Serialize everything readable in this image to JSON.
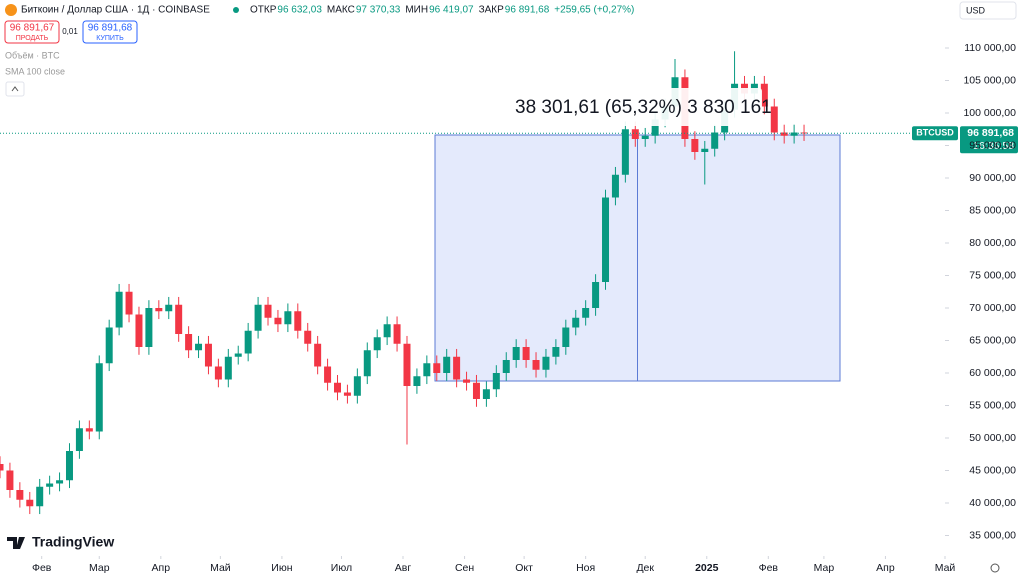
{
  "header": {
    "symbol": "Биткоин / Доллар США · 1Д · COINBASE",
    "stats": [
      {
        "label": "ОТКР",
        "value": "96 632,03"
      },
      {
        "label": "МАКС",
        "value": "97 370,33"
      },
      {
        "label": "МИН",
        "value": "96 419,07"
      },
      {
        "label": "ЗАКР",
        "value": "96 891,68"
      }
    ],
    "change": "+259,65 (+0,27%)",
    "currency": "USD",
    "sell": {
      "price": "96 891,67",
      "label": "ПРОДАТЬ"
    },
    "spread": "0,01",
    "buy": {
      "price": "96 891,68",
      "label": "КУПИТЬ"
    },
    "indicators": [
      "Объём · BTC",
      "SMA 100 close"
    ],
    "logo": "TradingView"
  },
  "chart_data": {
    "type": "candlestick",
    "name": "BTCUSD",
    "up_color": "#089981",
    "down_color": "#f23645",
    "last_price_label": "96 891,68",
    "countdown": "16:36:58",
    "measure_label": "38 301,61 (65,32%) 3 830 161",
    "xlim": [
      -21,
      455
    ],
    "ylim": [
      33077,
      117385
    ],
    "xticks": [
      {
        "value": 0,
        "label": "Фев"
      },
      {
        "value": 29,
        "label": "Мар"
      },
      {
        "value": 60,
        "label": "Апр"
      },
      {
        "value": 90,
        "label": "Май"
      },
      {
        "value": 121,
        "label": "Июн"
      },
      {
        "value": 151,
        "label": "Июл"
      },
      {
        "value": 182,
        "label": "Авг"
      },
      {
        "value": 213,
        "label": "Сен"
      },
      {
        "value": 243,
        "label": "Окт"
      },
      {
        "value": 274,
        "label": "Ноя"
      },
      {
        "value": 304,
        "label": "Дек"
      },
      {
        "value": 335,
        "label": "2025"
      },
      {
        "value": 366,
        "label": "Фев"
      },
      {
        "value": 394,
        "label": "Мар"
      },
      {
        "value": 425,
        "label": "Апр"
      },
      {
        "value": 455,
        "label": "Май"
      }
    ],
    "yticks": [
      {
        "value": 35000,
        "label": "35 000,00"
      },
      {
        "value": 40000,
        "label": "40 000,00"
      },
      {
        "value": 45000,
        "label": "45 000,00"
      },
      {
        "value": 50000,
        "label": "50 000,00"
      },
      {
        "value": 55000,
        "label": "55 000,00"
      },
      {
        "value": 60000,
        "label": "60 000,00"
      },
      {
        "value": 65000,
        "label": "65 000,00"
      },
      {
        "value": 70000,
        "label": "70 000,00"
      },
      {
        "value": 75000,
        "label": "75 000,00"
      },
      {
        "value": 80000,
        "label": "80 000,00"
      },
      {
        "value": 85000,
        "label": "85 000,00"
      },
      {
        "value": 90000,
        "label": "90 000,00"
      },
      {
        "value": 95000,
        "label": "95 000,00"
      },
      {
        "value": 100000,
        "label": "100 000,00"
      },
      {
        "value": 105000,
        "label": "105 000,00"
      },
      {
        "value": 110000,
        "label": "110 000,00"
      }
    ],
    "x": [
      -21,
      -16,
      -11,
      -6,
      -1,
      4,
      9,
      14,
      19,
      24,
      29,
      34,
      39,
      44,
      49,
      54,
      59,
      64,
      69,
      74,
      79,
      84,
      89,
      94,
      99,
      104,
      109,
      114,
      119,
      124,
      129,
      134,
      139,
      144,
      149,
      154,
      159,
      164,
      169,
      174,
      179,
      184,
      189,
      194,
      199,
      204,
      209,
      214,
      219,
      224,
      229,
      234,
      239,
      244,
      249,
      254,
      259,
      264,
      269,
      274,
      279,
      284,
      289,
      294,
      299,
      304,
      309,
      314,
      319,
      324,
      329,
      334,
      339,
      344,
      349,
      354,
      359,
      364,
      369,
      374,
      379,
      384
    ],
    "open": [
      46000,
      45000,
      42000,
      40500,
      39500,
      42500,
      43000,
      43500,
      48000,
      51500,
      51000,
      61500,
      67000,
      72500,
      69000,
      64000,
      70000,
      69500,
      70500,
      66000,
      63500,
      64500,
      61000,
      59000,
      62500,
      63000,
      66500,
      70500,
      68500,
      67500,
      69500,
      66500,
      64500,
      61000,
      58500,
      57000,
      56500,
      59500,
      63500,
      65500,
      67500,
      64500,
      58000,
      59500,
      61500,
      60000,
      62500,
      59000,
      58500,
      56000,
      57500,
      60000,
      62000,
      64000,
      62000,
      60500,
      62500,
      64000,
      67000,
      68500,
      70000,
      74000,
      87000,
      90500,
      97500,
      96000,
      96500,
      99000,
      101000,
      105500,
      96000,
      94000,
      94500,
      97000,
      100500,
      104500,
      103000,
      104500,
      101000,
      97000,
      96500,
      97000
    ],
    "high": [
      47200,
      46200,
      43200,
      41700,
      43700,
      44200,
      44700,
      49200,
      52700,
      52700,
      62700,
      68200,
      73700,
      73700,
      70200,
      71200,
      71200,
      71700,
      71700,
      67200,
      65700,
      65700,
      62200,
      63700,
      64200,
      67700,
      71700,
      71700,
      69700,
      70700,
      70700,
      67700,
      65700,
      62200,
      59700,
      58200,
      60700,
      64700,
      66700,
      68700,
      68700,
      65700,
      60700,
      62700,
      62700,
      63700,
      63700,
      60200,
      59700,
      58700,
      61200,
      63200,
      65200,
      65200,
      63200,
      63700,
      65200,
      68200,
      69700,
      71200,
      75200,
      88200,
      91700,
      98700,
      98700,
      97700,
      100200,
      102200,
      108300,
      106700,
      97200,
      95700,
      98200,
      101700,
      109500,
      105700,
      105700,
      105700,
      102200,
      98200,
      98200,
      98200
    ],
    "low": [
      43800,
      40800,
      39300,
      38300,
      38300,
      41300,
      41800,
      42300,
      46800,
      49800,
      49800,
      60300,
      65800,
      67800,
      62800,
      62800,
      68300,
      68300,
      64800,
      62300,
      62300,
      59800,
      57800,
      57800,
      61300,
      61800,
      65300,
      67300,
      66300,
      66300,
      65300,
      63300,
      59800,
      57300,
      55800,
      55300,
      55300,
      58300,
      62300,
      64300,
      63300,
      49000,
      56800,
      58300,
      58800,
      58800,
      57800,
      57300,
      54800,
      54800,
      56300,
      58800,
      60800,
      60800,
      59300,
      59300,
      61300,
      62800,
      65800,
      67300,
      68800,
      72800,
      85800,
      89300,
      94800,
      94800,
      95300,
      97800,
      99800,
      94800,
      92800,
      89000,
      93300,
      95800,
      99300,
      101800,
      101800,
      99800,
      95800,
      95300,
      95300,
      95700
    ],
    "close": [
      45000,
      42000,
      40500,
      39500,
      42500,
      43000,
      43500,
      48000,
      51500,
      51000,
      61500,
      67000,
      72500,
      69000,
      64000,
      70000,
      69500,
      70500,
      66000,
      63500,
      64500,
      61000,
      59000,
      62500,
      63000,
      66500,
      70500,
      68500,
      67500,
      69500,
      66500,
      64500,
      61000,
      58500,
      57000,
      56500,
      59500,
      63500,
      65500,
      67500,
      64500,
      58000,
      59500,
      61500,
      60000,
      62500,
      59000,
      58500,
      56000,
      57500,
      60000,
      62000,
      64000,
      62000,
      60500,
      62500,
      64000,
      67000,
      68500,
      70000,
      74000,
      87000,
      90500,
      97500,
      96000,
      96500,
      99000,
      101000,
      105500,
      96000,
      94000,
      94500,
      97000,
      100500,
      104500,
      103000,
      104500,
      101000,
      97000,
      96500,
      97000,
      96891.68
    ]
  }
}
